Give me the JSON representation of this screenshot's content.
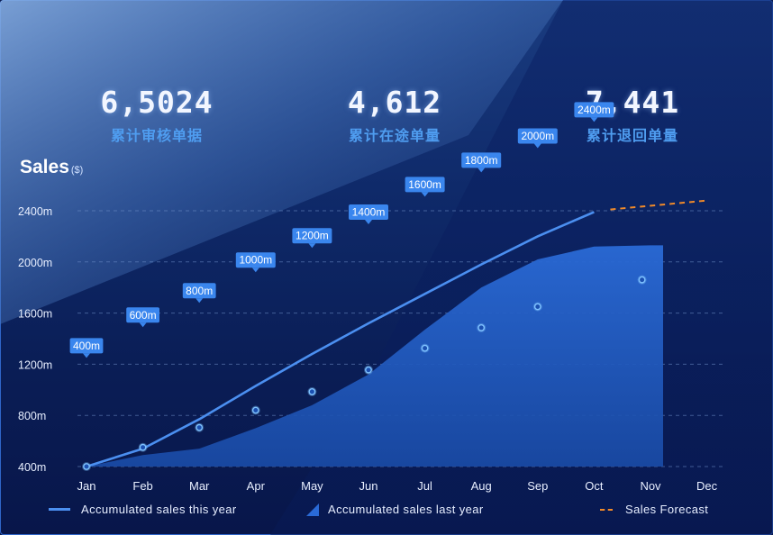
{
  "stats": [
    {
      "value": "6,5024",
      "label": "累计审核单据"
    },
    {
      "value": "4,612",
      "label": "累计在途单量"
    },
    {
      "value": "7,441",
      "label": "累计退回单量"
    }
  ],
  "colors": {
    "line": "#4b8ff0",
    "area": "#2a6ad6",
    "forecast": "#f08a2a",
    "tooltip": "#3a86ee",
    "point": "#7fc2ff"
  },
  "chart_data": {
    "type": "line",
    "title": "Sales",
    "unit": "($)",
    "categories": [
      "Jan",
      "Feb",
      "Mar",
      "Apr",
      "May",
      "Jun",
      "Jul",
      "Aug",
      "Sep",
      "Oct",
      "Nov",
      "Dec"
    ],
    "y_ticks": [
      "400m",
      "800m",
      "1200m",
      "1600m",
      "2000m",
      "2400m"
    ],
    "ylim": [
      400,
      2400
    ],
    "series": [
      {
        "name": "Accumulated sales this year",
        "kind": "line",
        "values": [
          400,
          540,
          770,
          1030,
          1280,
          1520,
          1750,
          1980,
          2200,
          2390,
          null,
          null
        ]
      },
      {
        "name": "Accumulated sales last year",
        "kind": "area",
        "values": [
          400,
          490,
          540,
          700,
          880,
          1120,
          1470,
          1800,
          2020,
          2120,
          2130,
          null
        ]
      },
      {
        "name": "Points",
        "kind": "scatter",
        "values": [
          400,
          550,
          705,
          840,
          985,
          1155,
          1325,
          1485,
          1650,
          1860,
          null,
          null
        ],
        "x_index": [
          0,
          1,
          2,
          3,
          4,
          5,
          6,
          7,
          8,
          9.85,
          null,
          null
        ]
      },
      {
        "name": "Sales Forecast",
        "kind": "dashed",
        "values": [
          null,
          null,
          null,
          null,
          null,
          null,
          null,
          null,
          null,
          null,
          2410,
          2480
        ]
      }
    ],
    "labels": [
      {
        "text": "400m",
        "index": 0,
        "value": 1285
      },
      {
        "text": "600m",
        "index": 1,
        "value": 1525
      },
      {
        "text": "800m",
        "index": 2,
        "value": 1715
      },
      {
        "text": "1000m",
        "index": 3,
        "value": 1955
      },
      {
        "text": "1200m",
        "index": 4,
        "value": 2145
      },
      {
        "text": "1400m",
        "index": 5,
        "value": 2330
      },
      {
        "text": "1600m",
        "index": 6,
        "value": 2545
      },
      {
        "text": "1800m",
        "index": 7,
        "value": 2735
      },
      {
        "text": "2000m",
        "index": 8,
        "value": 2925
      },
      {
        "text": "2400m",
        "index": 9,
        "value": 3130
      }
    ],
    "legend": [
      {
        "label": "Accumulated sales this year",
        "kind": "line"
      },
      {
        "label": "Accumulated sales last year",
        "kind": "area"
      },
      {
        "label": "Sales Forecast",
        "kind": "dashed"
      }
    ]
  }
}
